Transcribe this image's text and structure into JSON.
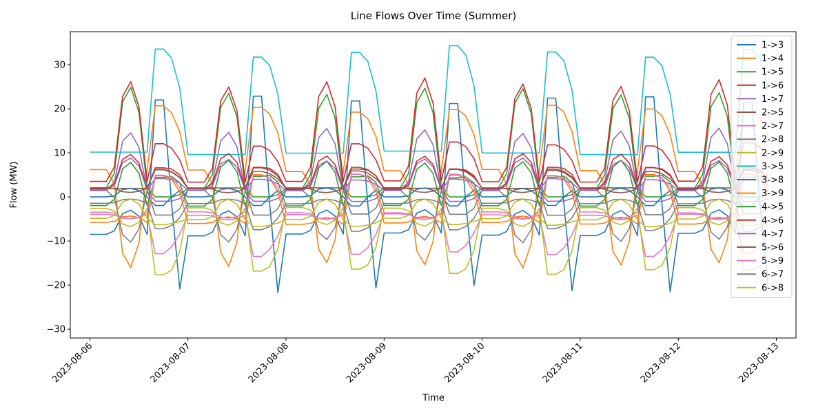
{
  "chart_data": {
    "type": "line",
    "title": "Line Flows Over Time (Summer)",
    "xlabel": "Time",
    "ylabel": "Flow (MW)",
    "x_tick_labels": [
      "2023-08-06",
      "2023-08-07",
      "2023-08-08",
      "2023-08-09",
      "2023-08-10",
      "2023-08-11",
      "2023-08-12",
      "2023-08-13"
    ],
    "xlim": [
      "2023-08-05T19:12",
      "2023-08-13T04:48"
    ],
    "ylim": [
      -32,
      37.5
    ],
    "y_ticks": [
      -30,
      -20,
      -10,
      0,
      10,
      20,
      30
    ],
    "grid": false,
    "legend_position": "top-right",
    "x_start": "2023-08-06T00:00",
    "x_step_hours": 2,
    "points_per_series": 84,
    "series": [
      {
        "name": "1->3",
        "color": "#1f77b4",
        "profile": {
          "night": -8.5,
          "morning": -3.0,
          "evening": 22.0,
          "after": -25.0
        }
      },
      {
        "name": "1->4",
        "color": "#ff7f0e",
        "profile": {
          "night": 6.0,
          "morning": -15.5,
          "evening": 20.0,
          "after": 17.0
        }
      },
      {
        "name": "1->5",
        "color": "#2ca02c",
        "profile": {
          "night": 2.0,
          "morning": 24.0,
          "evening": 0.0,
          "after": 0.0
        }
      },
      {
        "name": "1->6",
        "color": "#d62728",
        "profile": {
          "night": 3.5,
          "morning": 26.0,
          "evening": 12.0,
          "after": 10.0
        }
      },
      {
        "name": "1->7",
        "color": "#9467bd",
        "profile": {
          "night": 1.5,
          "morning": 15.0,
          "evening": -1.0,
          "after": -1.0
        }
      },
      {
        "name": "2->5",
        "color": "#8c564b",
        "profile": {
          "night": 2.0,
          "morning": 2.0,
          "evening": 6.5,
          "after": 5.5
        }
      },
      {
        "name": "2->7",
        "color": "#e377c2",
        "profile": {
          "night": -4.0,
          "morning": -5.0,
          "evening": -13.0,
          "after": -10.0
        }
      },
      {
        "name": "2->8",
        "color": "#7f7f7f",
        "profile": {
          "night": 1.5,
          "morning": -10.0,
          "evening": -4.0,
          "after": -4.0
        }
      },
      {
        "name": "2->9",
        "color": "#bcbd22",
        "profile": {
          "night": -2.5,
          "morning": -6.5,
          "evening": -17.0,
          "after": -15.0
        }
      },
      {
        "name": "3->5",
        "color": "#17becf",
        "profile": {
          "night": 10.0,
          "morning": 10.0,
          "evening": 33.0,
          "after": 29.0
        }
      },
      {
        "name": "3->8",
        "color": "#1f77b4",
        "profile": {
          "night": 0.0,
          "morning": 2.0,
          "evening": -2.0,
          "after": 2.0
        }
      },
      {
        "name": "3->9",
        "color": "#ff7f0e",
        "profile": {
          "night": -6.0,
          "morning": -4.5,
          "evening": 5.0,
          "after": 3.5
        }
      },
      {
        "name": "4->5",
        "color": "#2ca02c",
        "profile": {
          "night": -2.0,
          "morning": 8.0,
          "evening": 4.5,
          "after": 5.0
        }
      },
      {
        "name": "4->6",
        "color": "#d62728",
        "profile": {
          "night": 1.8,
          "morning": 9.5,
          "evening": 6.5,
          "after": 6.0
        }
      },
      {
        "name": "4->7",
        "color": "#9467bd",
        "profile": {
          "night": 1.5,
          "morning": 8.5,
          "evening": 4.0,
          "after": 3.5
        }
      },
      {
        "name": "5->6",
        "color": "#8c564b",
        "profile": {
          "night": 2.0,
          "morning": 1.0,
          "evening": 6.0,
          "after": 5.0
        }
      },
      {
        "name": "5->9",
        "color": "#e377c2",
        "profile": {
          "night": -3.5,
          "morning": -5.0,
          "evening": 5.0,
          "after": 4.0
        }
      },
      {
        "name": "6->7",
        "color": "#7f7f7f",
        "profile": {
          "night": -1.5,
          "morning": -0.5,
          "evening": -7.5,
          "after": -6.0
        }
      },
      {
        "name": "6->8",
        "color": "#bcbd22",
        "profile": {
          "night": -5.0,
          "morning": -0.5,
          "evening": -6.5,
          "after": -6.0
        }
      }
    ]
  }
}
